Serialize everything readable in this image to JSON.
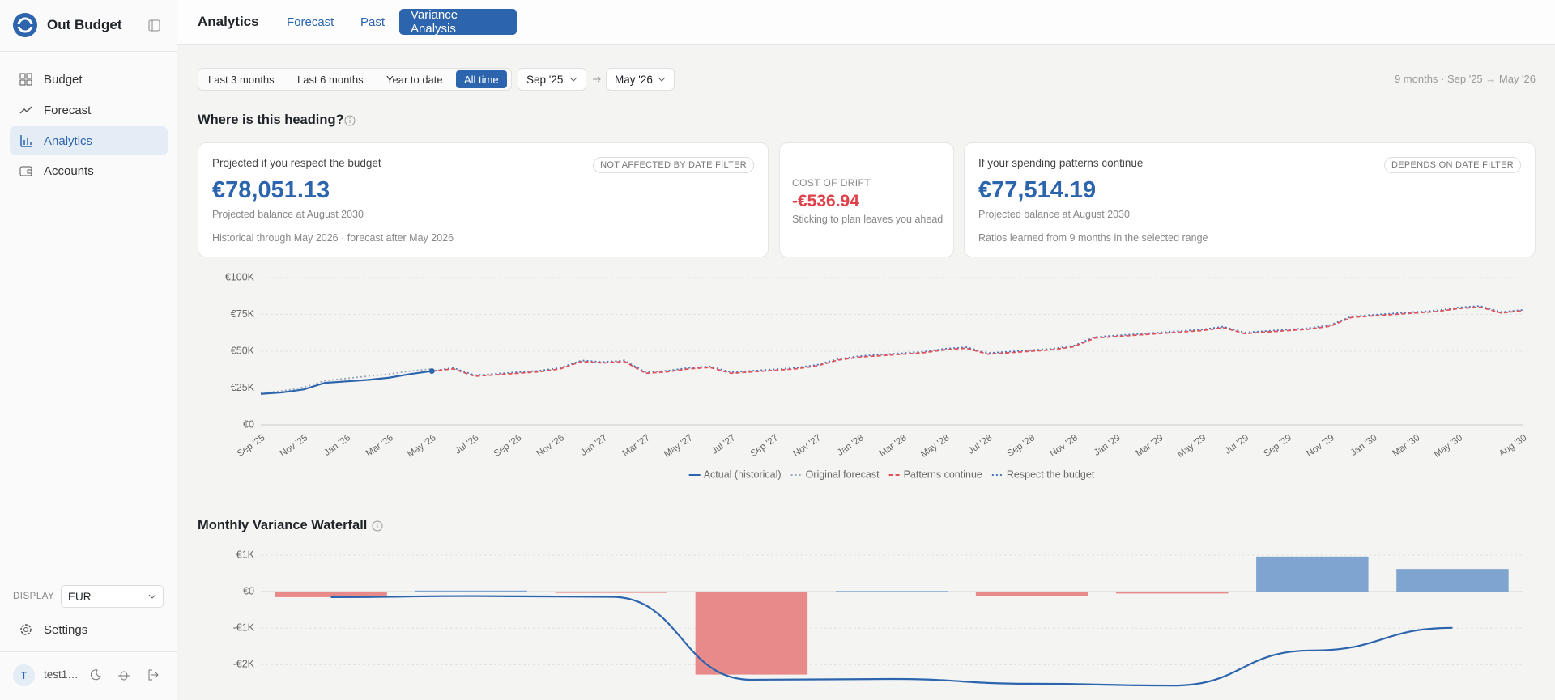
{
  "sidebar": {
    "brand": "Out Budget",
    "nav": [
      "Budget",
      "Forecast",
      "Analytics",
      "Accounts"
    ],
    "display_label": "DISPLAY",
    "currency": "EUR",
    "settings": "Settings",
    "user_initial": "T",
    "user": "test1…"
  },
  "topbar": {
    "title": "Analytics",
    "tabs": [
      "Forecast",
      "Past",
      "Variance Analysis"
    ]
  },
  "filters": {
    "ranges": [
      "Last 3 months",
      "Last 6 months",
      "Year to date",
      "All time"
    ],
    "from": "Sep '25",
    "to": "May '26",
    "summary": "9 months · Sep '25 → May '26"
  },
  "cards": [
    {
      "label": "Projected if you respect the budget",
      "badge": "NOT AFFECTED BY DATE FILTER",
      "amount": "€78,051.13",
      "caption": "Projected balance at August 2030",
      "note": "Historical through May 2026 · forecast after May 2026"
    },
    {
      "label": "COST OF DRIFT",
      "amount": "-€536.94",
      "caption": "Sticking to plan leaves you ahead"
    },
    {
      "label": "If your spending patterns continue",
      "badge": "DEPENDS ON DATE FILTER",
      "amount": "€77,514.19",
      "caption": "Projected balance at August 2030",
      "note": "Ratios learned from 9 months in the selected range"
    }
  ],
  "chart_data": [
    {
      "type": "line",
      "title": "Where is this heading?",
      "categories": [
        "Sep '25",
        null,
        "Nov '25",
        null,
        "Jan '26",
        null,
        "Mar '26",
        null,
        "May '26",
        null,
        "Jul '26",
        null,
        "Sep '26",
        null,
        "Nov '26",
        null,
        "Jan '27",
        null,
        "Mar '27",
        null,
        "May '27",
        null,
        "Jul '27",
        null,
        "Sep '27",
        null,
        "Nov '27",
        null,
        "Jan '28",
        null,
        "Mar '28",
        null,
        "May '28",
        null,
        "Jul '28",
        null,
        "Sep '28",
        null,
        "Nov '28",
        null,
        "Jan '29",
        null,
        "Mar '29",
        null,
        "May '29",
        null,
        "Jul '29",
        null,
        "Sep '29",
        null,
        "Nov '29",
        null,
        "Jan '30",
        null,
        "Mar '30",
        null,
        "May '30",
        null,
        null,
        "Aug '30"
      ],
      "ylim": [
        0,
        100000
      ],
      "yticks": [
        {
          "value": 0,
          "label": "€0"
        },
        {
          "value": 25000,
          "label": "€25K"
        },
        {
          "value": 50000,
          "label": "€50K"
        },
        {
          "value": 75000,
          "label": "€75K"
        },
        {
          "value": 100000,
          "label": "€100K"
        }
      ],
      "grid": true,
      "series": [
        {
          "name": "Actual (historical)",
          "color": "#2c64ad",
          "style": "solid",
          "marker": true,
          "values": [
            21000,
            22000,
            24000,
            28500,
            29500,
            30500,
            32000,
            34500,
            36500,
            null,
            null,
            null,
            null,
            null,
            null,
            null,
            null,
            null,
            null,
            null,
            null,
            null,
            null,
            null,
            null,
            null,
            null,
            null,
            null,
            null,
            null,
            null,
            null,
            null,
            null,
            null,
            null,
            null,
            null,
            null,
            null,
            null,
            null,
            null,
            null,
            null,
            null,
            null,
            null,
            null,
            null,
            null,
            null,
            null,
            null,
            null,
            null,
            null,
            null,
            null
          ]
        },
        {
          "name": "Original forecast",
          "color": "#9aa7b8",
          "style": "dotted",
          "values": [
            21500,
            23000,
            25500,
            30000,
            31500,
            33000,
            34500,
            36500,
            38000,
            null,
            null,
            null,
            null,
            null,
            null,
            null,
            null,
            null,
            null,
            null,
            null,
            null,
            null,
            null,
            null,
            null,
            null,
            null,
            null,
            null,
            null,
            null,
            null,
            null,
            null,
            null,
            null,
            null,
            null,
            null,
            null,
            null,
            null,
            null,
            null,
            null,
            null,
            null,
            null,
            null,
            null,
            null,
            null,
            null,
            null,
            null,
            null,
            null,
            null,
            null
          ]
        },
        {
          "name": "Patterns continue",
          "color": "#e0525a",
          "style": "dashed",
          "values": [
            null,
            null,
            null,
            null,
            null,
            null,
            null,
            null,
            36500,
            38000,
            33000,
            34000,
            35000,
            36000,
            38000,
            43000,
            42000,
            43000,
            35000,
            36000,
            38000,
            39000,
            35000,
            36000,
            37000,
            38000,
            40000,
            44000,
            46000,
            47000,
            48000,
            49000,
            51000,
            52000,
            48000,
            49000,
            50000,
            51000,
            53000,
            59000,
            60000,
            61000,
            62000,
            63000,
            64000,
            66000,
            62000,
            63000,
            64000,
            65000,
            67000,
            73000,
            74000,
            75000,
            76000,
            77000,
            79000,
            80000,
            76000,
            77500
          ]
        },
        {
          "name": "Respect the budget",
          "color": "#4a78c0",
          "style": "dotted",
          "values": [
            null,
            null,
            null,
            null,
            null,
            null,
            null,
            null,
            36500,
            38700,
            33700,
            34700,
            35700,
            36700,
            38700,
            43700,
            42700,
            43700,
            35700,
            36700,
            38700,
            39700,
            35700,
            36700,
            37700,
            38700,
            40700,
            44700,
            46700,
            47700,
            48700,
            49700,
            51700,
            52700,
            48700,
            49700,
            50700,
            51700,
            53700,
            59700,
            60700,
            61700,
            62700,
            63700,
            64700,
            66700,
            62700,
            63700,
            64700,
            65700,
            67700,
            73700,
            74700,
            75700,
            76700,
            77700,
            79700,
            80700,
            76700,
            78000
          ]
        }
      ]
    },
    {
      "type": "waterfall",
      "title": "Monthly Variance Waterfall",
      "values": [
        -150,
        30,
        -20,
        -2270,
        20,
        -130,
        -50,
        960,
        620
      ],
      "cumulative": [
        -150,
        -120,
        -140,
        -2410,
        -2390,
        -2520,
        -2570,
        -1610,
        -990
      ],
      "positive_color": "#7ea4cf",
      "negative_color": "#e98a8a",
      "line_color": "#2c64ad",
      "ylim": [
        -2500,
        1000
      ],
      "yticks": [
        {
          "value": 1000,
          "label": "€1K"
        },
        {
          "value": 0,
          "label": "€0"
        },
        {
          "value": -1000,
          "label": "-€1K"
        },
        {
          "value": -2000,
          "label": "-€2K"
        }
      ],
      "grid": true
    }
  ]
}
